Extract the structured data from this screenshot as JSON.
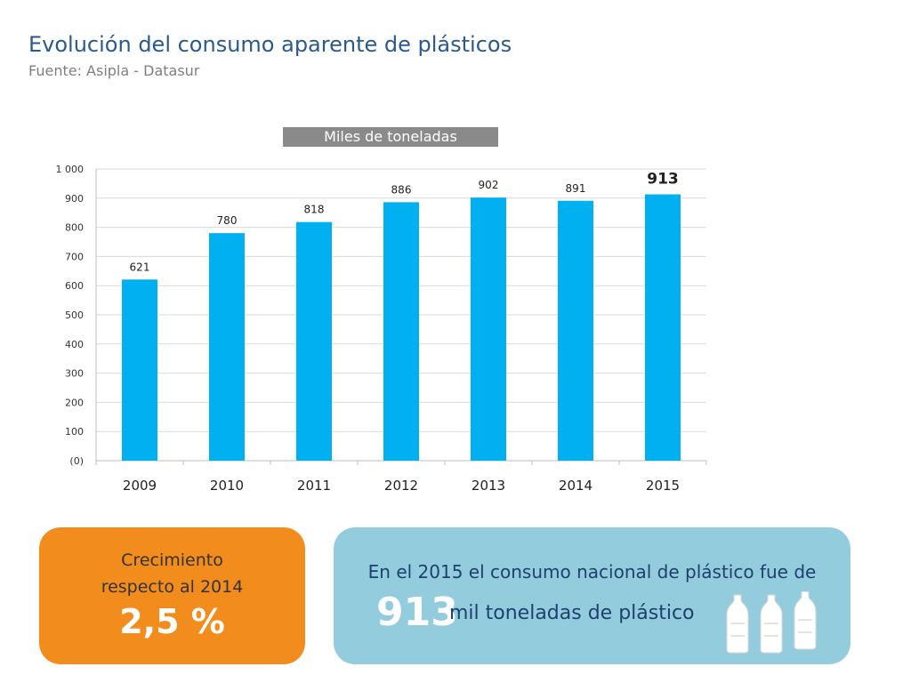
{
  "header": {
    "title": "Evolución del consumo aparente de plásticos",
    "source": "Fuente: Asipla - Datasur"
  },
  "chart_unit_label": "Miles de toneladas",
  "chart_data": {
    "type": "bar",
    "categories": [
      "2009",
      "2010",
      "2011",
      "2012",
      "2013",
      "2014",
      "2015"
    ],
    "values": [
      621,
      780,
      818,
      886,
      902,
      891,
      913
    ],
    "data_labels": [
      "621",
      "780",
      "818",
      "886",
      "902",
      "891",
      "913"
    ],
    "y_ticks": [
      0,
      100,
      200,
      300,
      400,
      500,
      600,
      700,
      800,
      900,
      1000
    ],
    "y_tick_labels": [
      "(0)",
      "100",
      "200",
      "300",
      "400",
      "500",
      "600",
      "700",
      "800",
      "900",
      "1 000"
    ],
    "ylim": [
      0,
      1000
    ],
    "title": "",
    "xlabel": "",
    "ylabel": "",
    "grid": true,
    "bar_color": "#00b0f0",
    "highlight_last_label": true
  },
  "growth_card": {
    "line1": "Crecimiento",
    "line2": "respecto al 2014",
    "value": "2,5 %"
  },
  "summary_card": {
    "line1": "En el 2015 el consumo nacional de plástico fue de",
    "big_value": "913",
    "rest": "mil toneladas de plástico"
  },
  "colors": {
    "accent_orange": "#f28c1c",
    "accent_blue": "#93cddd",
    "title_blue": "#2a5a8c"
  }
}
